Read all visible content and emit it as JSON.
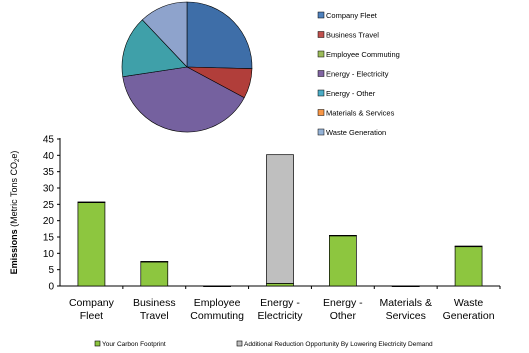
{
  "chart_data": [
    {
      "type": "pie",
      "title": "",
      "legend": {
        "placement": "right",
        "entries": [
          {
            "label": "Company Fleet",
            "color": "#4f81bd"
          },
          {
            "label": "Business Travel",
            "color": "#c0504d"
          },
          {
            "label": "Employee Commuting",
            "color": "#9bbb59"
          },
          {
            "label": "Energy - Electricity",
            "color": "#8064a2"
          },
          {
            "label": "Energy - Other",
            "color": "#4bacc6"
          },
          {
            "label": "Materials & Services",
            "color": "#f79646"
          },
          {
            "label": "Waste Generation",
            "color": "#95b3d7"
          }
        ]
      },
      "slices": [
        {
          "label": "Company Fleet",
          "value": 25.7,
          "color": "#3e6ea8"
        },
        {
          "label": "Business Travel",
          "value": 7.5,
          "color": "#b13e3a"
        },
        {
          "label": "Employee Commuting",
          "value": 0,
          "color": "#8cb04a"
        },
        {
          "label": "Energy - Electricity",
          "value": 40.2,
          "color": "#75619f"
        },
        {
          "label": "Energy - Other",
          "value": 15.5,
          "color": "#3fa0a9"
        },
        {
          "label": "Materials & Services",
          "value": 0,
          "color": "#e0893b"
        },
        {
          "label": "Waste Generation",
          "value": 12.2,
          "color": "#8ea3cc"
        }
      ]
    },
    {
      "type": "bar",
      "stacked": true,
      "categories": [
        [
          "Company",
          "Fleet"
        ],
        [
          "Business",
          "Travel"
        ],
        [
          "Employee",
          "Commuting"
        ],
        [
          "Energy -",
          "Electricity"
        ],
        [
          "Energy -",
          "Other"
        ],
        [
          "Materials &",
          "Services"
        ],
        [
          "Waste",
          "Generation"
        ]
      ],
      "series": [
        {
          "name": "Your Carbon Footprint",
          "color": "#8dc63f",
          "values": [
            25.7,
            7.5,
            0,
            0.8,
            15.5,
            0,
            12.2
          ]
        },
        {
          "name": "Additional Reduction Opportunity By Lowering Electricity Demand",
          "color": "#bfbfbf",
          "values": [
            0,
            0,
            0,
            39.4,
            0,
            0,
            0
          ]
        }
      ],
      "ylabel": {
        "bold": "Emissions",
        "rest": " (Metric Tons CO",
        "sub": "2",
        "tail": "e)"
      },
      "ylim": [
        0,
        45
      ],
      "yticks": [
        0,
        5,
        10,
        15,
        20,
        25,
        30,
        35,
        40,
        45
      ],
      "grid": false,
      "legend_placement": "bottom"
    }
  ]
}
